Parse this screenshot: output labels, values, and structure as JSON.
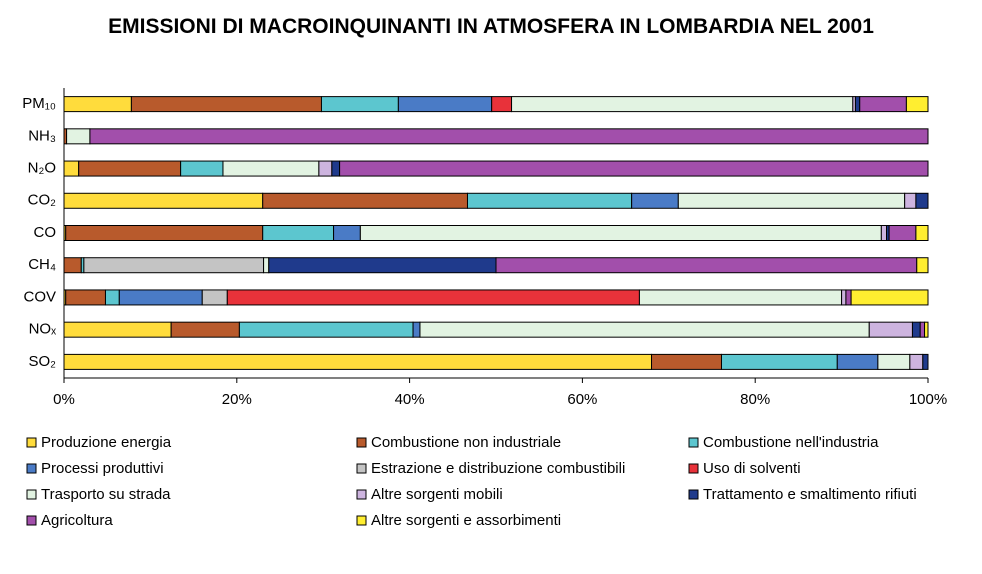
{
  "chart_data": {
    "type": "stacked-bar-horizontal",
    "title": "EMISSIONI DI MACROINQUINANTI IN ATMOSFERA IN LOMBARDIA NEL 2001",
    "categories": [
      "PM₁₀",
      "NH₃",
      "N₂O",
      "CO₂",
      "CO",
      "CH₄",
      "COV",
      "NOₓ",
      "SO₂"
    ],
    "xlim": [
      0,
      100
    ],
    "xticks": [
      {
        "value": 0,
        "label": "0%"
      },
      {
        "value": 20,
        "label": "20%"
      },
      {
        "value": 40,
        "label": "40%"
      },
      {
        "value": 60,
        "label": "60%"
      },
      {
        "value": 80,
        "label": "80%"
      },
      {
        "value": 100,
        "label": "100%"
      }
    ],
    "series": [
      {
        "name": "Produzione energia",
        "color": "#ffdc3c",
        "values": [
          7.8,
          0,
          1.7,
          23.0,
          0.2,
          0,
          0.2,
          12.4,
          68.0
        ]
      },
      {
        "name": "Combustione non industriale",
        "color": "#b85a2c",
        "values": [
          22.0,
          0.3,
          11.8,
          23.7,
          22.8,
          2.0,
          4.6,
          7.9,
          8.1
        ]
      },
      {
        "name": "Combustione nell'industria",
        "color": "#5cc6cf",
        "values": [
          8.9,
          0,
          4.9,
          19.0,
          8.2,
          0.3,
          1.6,
          20.1,
          13.4
        ]
      },
      {
        "name": "Processi produttivi",
        "color": "#4a7bc6",
        "values": [
          10.8,
          0,
          0,
          5.4,
          3.1,
          0,
          9.6,
          0.8,
          4.7
        ]
      },
      {
        "name": "Estrazione e distribuzione combustibili",
        "color": "#c4c4c4",
        "values": [
          0,
          0,
          0,
          0,
          0,
          20.8,
          2.9,
          0,
          0
        ]
      },
      {
        "name": "Uso di solventi",
        "color": "#e8323a",
        "values": [
          2.3,
          0,
          0,
          0,
          0,
          0,
          47.7,
          0,
          0
        ]
      },
      {
        "name": "Trasporto su strada",
        "color": "#e2f3e2",
        "values": [
          39.5,
          2.7,
          11.1,
          26.2,
          60.3,
          0.6,
          23.4,
          52.0,
          3.7
        ]
      },
      {
        "name": "Altre sorgenti mobili",
        "color": "#cdb4df",
        "values": [
          0.3,
          0,
          1.5,
          1.3,
          0.6,
          0,
          0.5,
          5.0,
          1.5
        ]
      },
      {
        "name": "Trattamento e smaltimento rifiuti",
        "color": "#1f3a8c",
        "values": [
          0.5,
          0,
          0.9,
          1.4,
          0.3,
          26.3,
          0,
          0.9,
          0.6
        ]
      },
      {
        "name": "Agricoltura",
        "color": "#a24fab",
        "values": [
          5.4,
          97.0,
          68.1,
          0,
          3.1,
          48.7,
          0.6,
          0.5,
          0
        ]
      },
      {
        "name": "Altre sorgenti e assorbimenti",
        "color": "#ffee30",
        "values": [
          2.5,
          0,
          0,
          0,
          1.4,
          1.3,
          8.9,
          0.4,
          0
        ]
      }
    ]
  }
}
